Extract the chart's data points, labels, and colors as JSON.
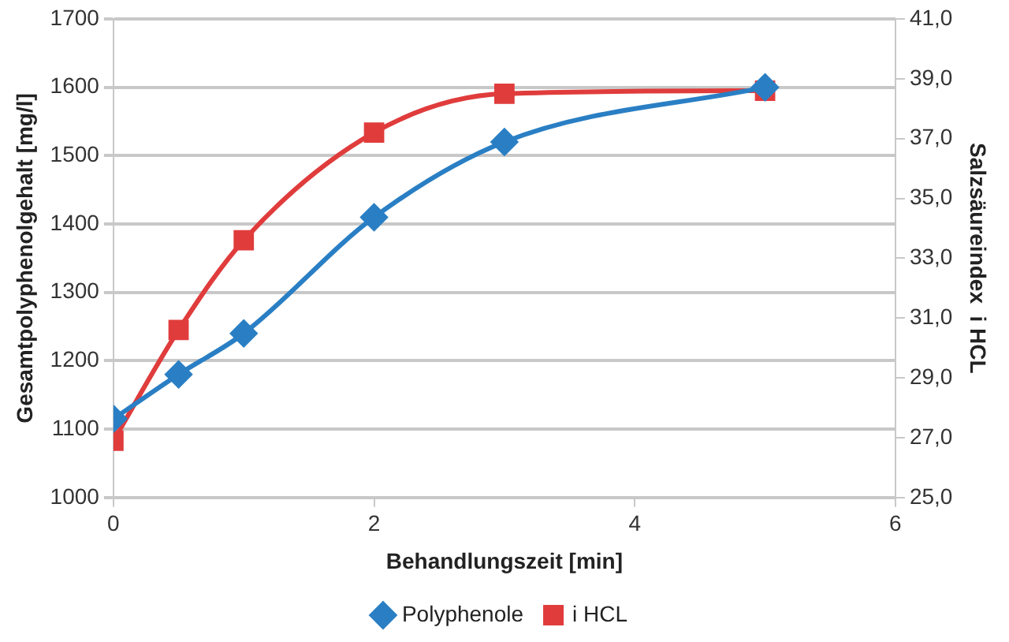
{
  "chart_data": {
    "type": "line",
    "xlabel": "Behandlungszeit [min]",
    "ylabel": "Gesamtpolyphenolgehalt [mg/l]",
    "y2label": "Salzsäureindex  i HCL",
    "x": [
      0,
      0.5,
      1,
      2,
      3,
      5
    ],
    "series": [
      {
        "name": "Polyphenole",
        "color": "#2a7fc4",
        "marker": "diamond",
        "values": [
          1115,
          1180,
          1240,
          1410,
          1520,
          1600
        ]
      },
      {
        "name": "i HCL",
        "color": "#e03c3c",
        "marker": "square",
        "axis": "y2",
        "values": [
          26.9,
          30.6,
          33.6,
          37.2,
          38.5,
          38.6
        ]
      }
    ],
    "xlim": [
      0,
      6
    ],
    "xticks": [
      0,
      2,
      4,
      6
    ],
    "ylim": [
      1000,
      1700
    ],
    "yticks": [
      1000,
      1100,
      1200,
      1300,
      1400,
      1500,
      1600,
      1700
    ],
    "y2lim": [
      25,
      41
    ],
    "y2ticks": [
      {
        "value": 25,
        "label": "25,0"
      },
      {
        "value": 27,
        "label": "27,0"
      },
      {
        "value": 29,
        "label": "29,0"
      },
      {
        "value": 31,
        "label": "31,0"
      },
      {
        "value": 33,
        "label": "33,0"
      },
      {
        "value": 35,
        "label": "35,0"
      },
      {
        "value": 37,
        "label": "37,0"
      },
      {
        "value": 39,
        "label": "39,0"
      },
      {
        "value": 41,
        "label": "41,0"
      }
    ],
    "grid": "y",
    "legend": "bottom"
  }
}
